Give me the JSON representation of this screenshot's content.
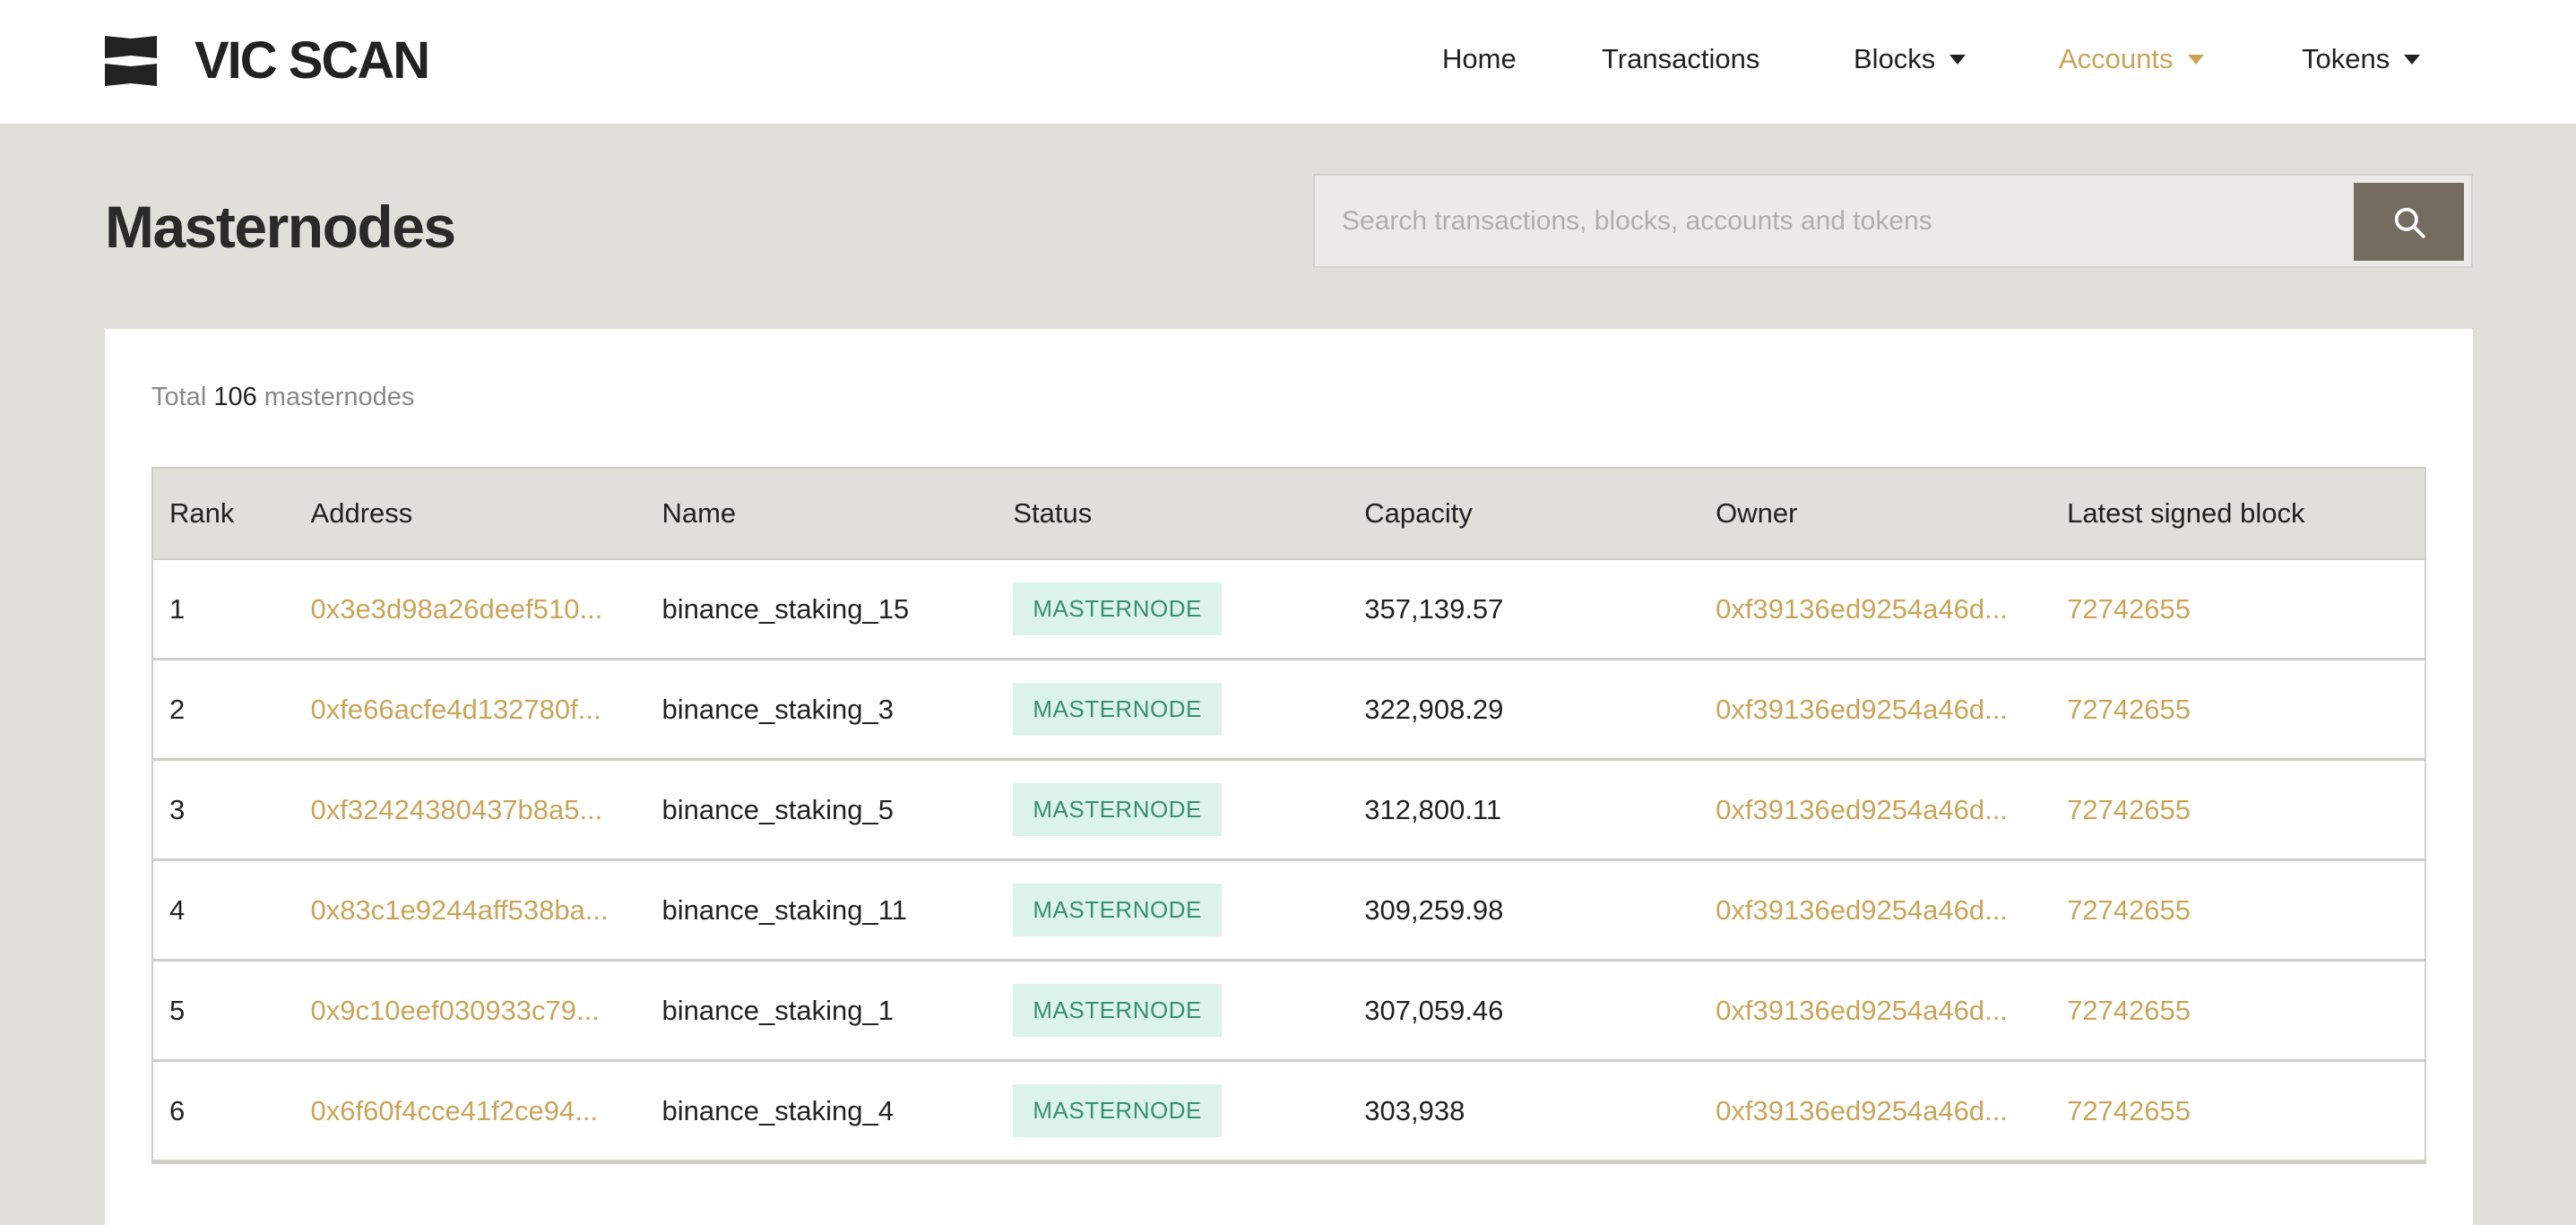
{
  "brand": {
    "name": "VIC SCAN"
  },
  "nav": [
    {
      "label": "Home",
      "dropdown": false
    },
    {
      "label": "Transactions",
      "dropdown": false
    },
    {
      "label": "Blocks",
      "dropdown": true
    },
    {
      "label": "Accounts",
      "dropdown": true,
      "active": true
    },
    {
      "label": "Tokens",
      "dropdown": true
    }
  ],
  "page": {
    "title": "Masternodes"
  },
  "search": {
    "placeholder": "Search transactions, blocks, accounts and tokens",
    "value": "",
    "icon": "search-icon"
  },
  "summary": {
    "prefix": "Total",
    "count": "106",
    "suffix": "masternodes"
  },
  "table": {
    "columns": [
      "Rank",
      "Address",
      "Name",
      "Status",
      "Capacity",
      "Owner",
      "Latest signed block"
    ],
    "rows": [
      {
        "rank": "1",
        "address": "0x3e3d98a26deef510...",
        "name": "binance_staking_15",
        "status": "MASTERNODE",
        "capacity": "357,139.57",
        "owner": "0xf39136ed9254a46d...",
        "block": "72742655"
      },
      {
        "rank": "2",
        "address": "0xfe66acfe4d132780f...",
        "name": "binance_staking_3",
        "status": "MASTERNODE",
        "capacity": "322,908.29",
        "owner": "0xf39136ed9254a46d...",
        "block": "72742655"
      },
      {
        "rank": "3",
        "address": "0xf32424380437b8a5...",
        "name": "binance_staking_5",
        "status": "MASTERNODE",
        "capacity": "312,800.11",
        "owner": "0xf39136ed9254a46d...",
        "block": "72742655"
      },
      {
        "rank": "4",
        "address": "0x83c1e9244aff538ba...",
        "name": "binance_staking_11",
        "status": "MASTERNODE",
        "capacity": "309,259.98",
        "owner": "0xf39136ed9254a46d...",
        "block": "72742655"
      },
      {
        "rank": "5",
        "address": "0x9c10eef030933c79...",
        "name": "binance_staking_1",
        "status": "MASTERNODE",
        "capacity": "307,059.46",
        "owner": "0xf39136ed9254a46d...",
        "block": "72742655"
      },
      {
        "rank": "6",
        "address": "0x6f60f4cce41f2ce94...",
        "name": "binance_staking_4",
        "status": "MASTERNODE",
        "capacity": "303,938",
        "owner": "0xf39136ed9254a46d...",
        "block": "72742655"
      }
    ]
  },
  "colors": {
    "accent": "#c9a55a",
    "background": "#e0dfda",
    "badge_bg": "#dcf3ec",
    "badge_text": "#3a8f73",
    "search_button": "#756c60"
  }
}
